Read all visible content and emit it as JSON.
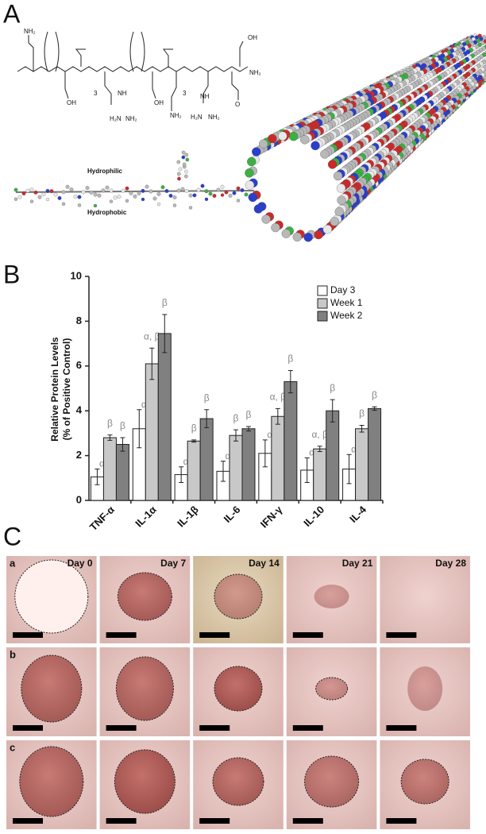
{
  "panel_labels": [
    "A",
    "B",
    "C"
  ],
  "structure": {
    "hydrophilic": "Hydrophilic",
    "hydrophobic": "Hydrophobic",
    "atoms": [
      "NH₂",
      "OH",
      "3",
      "NH",
      "H₂N",
      "NH₂",
      "OH",
      "3",
      "NH₂",
      "NH",
      "H₂N",
      "NH₂",
      "OH",
      "NH₂",
      "O"
    ]
  },
  "chart_data": {
    "type": "bar",
    "ylabel": [
      "Relative Protein Levels",
      "(% of Positive Control)"
    ],
    "categories": [
      "TNF-α",
      "IL-1α",
      "IL-1β",
      "IL-6",
      "IFN-γ",
      "IL-10",
      "IL-4"
    ],
    "ylim": [
      0,
      10
    ],
    "yticks": [
      0,
      2,
      4,
      6,
      8,
      10
    ],
    "legend": "upper right",
    "series": [
      {
        "name": "Day 3",
        "color": "#ffffff",
        "values": [
          1.05,
          3.2,
          1.15,
          1.3,
          2.1,
          1.35,
          1.4
        ],
        "errors": [
          0.35,
          0.85,
          0.35,
          0.45,
          0.6,
          0.55,
          0.65
        ],
        "annotations": [
          "α",
          "α",
          "α",
          "α",
          "α",
          "α",
          "α"
        ]
      },
      {
        "name": "Week 1",
        "color": "#c8c8c8",
        "values": [
          2.8,
          6.1,
          2.65,
          2.9,
          3.75,
          2.3,
          3.2
        ],
        "errors": [
          0.12,
          0.7,
          0.05,
          0.25,
          0.35,
          0.12,
          0.15
        ],
        "annotations": [
          "β",
          "α, β",
          "β",
          "β",
          "α, β",
          "α, β",
          "β"
        ]
      },
      {
        "name": "Week 2",
        "color": "#808080",
        "values": [
          2.5,
          7.45,
          3.65,
          3.2,
          5.3,
          4.0,
          4.1
        ],
        "errors": [
          0.3,
          0.85,
          0.4,
          0.1,
          0.5,
          0.5,
          0.08
        ],
        "annotations": [
          "β",
          "β",
          "β",
          "β",
          "β",
          "β",
          "β"
        ]
      }
    ]
  },
  "photos": {
    "days": [
      "Day 0",
      "Day 7",
      "Day 14",
      "Day 21",
      "Day 28"
    ],
    "rows": [
      "a",
      "b",
      "c"
    ]
  }
}
